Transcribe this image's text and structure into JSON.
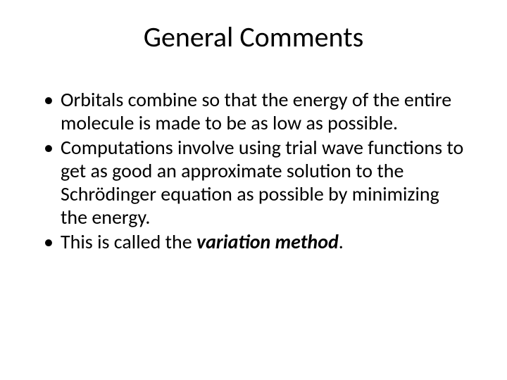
{
  "slide": {
    "title": "General Comments",
    "title_fontsize": 40,
    "title_color": "#000000",
    "body_fontsize": 28,
    "body_color": "#000000",
    "background_color": "#ffffff",
    "line_height": 1.18,
    "bullets": [
      {
        "prefix": "Orbitals combine so that the energy of the entire molecule is made to be as low as possible.",
        "emph": "",
        "suffix": ""
      },
      {
        "prefix": "Computations involve using trial wave functions to get as good an approximate solution to the Schrödinger equation as possible by minimizing the energy.",
        "emph": "",
        "suffix": ""
      },
      {
        "prefix": "This is called the ",
        "emph": "variation method",
        "suffix": "."
      }
    ]
  }
}
